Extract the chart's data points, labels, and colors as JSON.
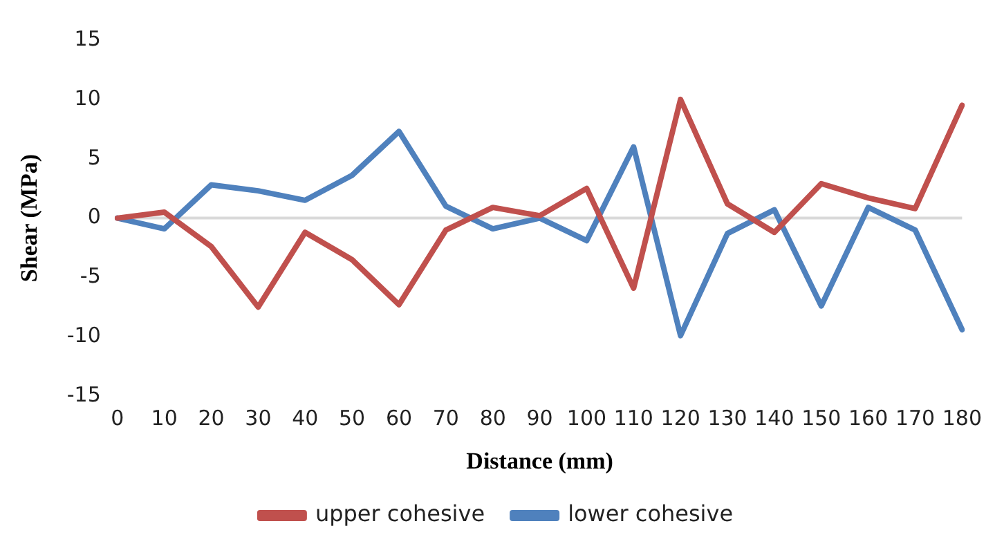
{
  "chart_data": {
    "type": "line",
    "xlabel": "Distance (mm)",
    "ylabel": "Shear (MPa)",
    "categories": [
      "0",
      "10",
      "20",
      "30",
      "40",
      "50",
      "60",
      "70",
      "80",
      "90",
      "100",
      "110",
      "120",
      "130",
      "140",
      "150",
      "160",
      "170",
      "180"
    ],
    "series": [
      {
        "name": "upper cohesive",
        "color": "#c0504d",
        "values": [
          0,
          0.5,
          -2.4,
          -7.5,
          -1.2,
          -3.5,
          -7.3,
          -1,
          0.9,
          0.2,
          2.5,
          -5.9,
          10,
          1.2,
          -1.2,
          2.9,
          1.7,
          0.8,
          9.5
        ]
      },
      {
        "name": "lower cohesive",
        "color": "#4f81bd",
        "values": [
          0,
          -0.9,
          2.8,
          2.3,
          1.5,
          3.6,
          7.3,
          1,
          -0.9,
          0,
          -1.9,
          6,
          -9.9,
          -1.3,
          0.7,
          -7.4,
          0.9,
          -1,
          -9.4
        ]
      }
    ],
    "ylim": [
      -15,
      15
    ],
    "yticks": [
      -15,
      -10,
      -5,
      0,
      5,
      10,
      15
    ],
    "ref_lines": [
      {
        "axis": "y",
        "value": 0,
        "color": "#d9d9d9"
      }
    ],
    "grid": false,
    "legend": "bottom",
    "marker": "none",
    "line_style": "solid"
  }
}
